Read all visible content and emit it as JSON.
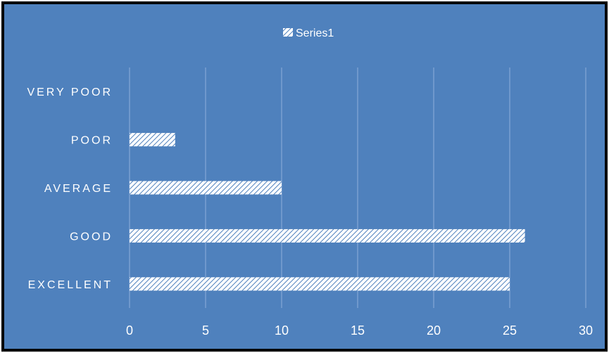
{
  "chart_data": {
    "type": "bar",
    "orientation": "horizontal",
    "categories": [
      "EXCELLENT",
      "GOOD",
      "AVERAGE",
      "POOR",
      "VERY POOR"
    ],
    "series": [
      {
        "name": "Series1",
        "values": [
          25,
          26,
          10,
          3,
          0
        ]
      }
    ],
    "xlim": [
      0,
      30
    ],
    "x_ticks": [
      0,
      5,
      10,
      15,
      20,
      25,
      30
    ],
    "grid": "vertical",
    "legend": "top",
    "colors": {
      "plot_background": "#4f81bd",
      "bar_fill": "#ffffff",
      "bar_hatch": "#4f81bd",
      "grid": "#8faedc",
      "text": "#ffffff",
      "frame": "#000000"
    }
  }
}
